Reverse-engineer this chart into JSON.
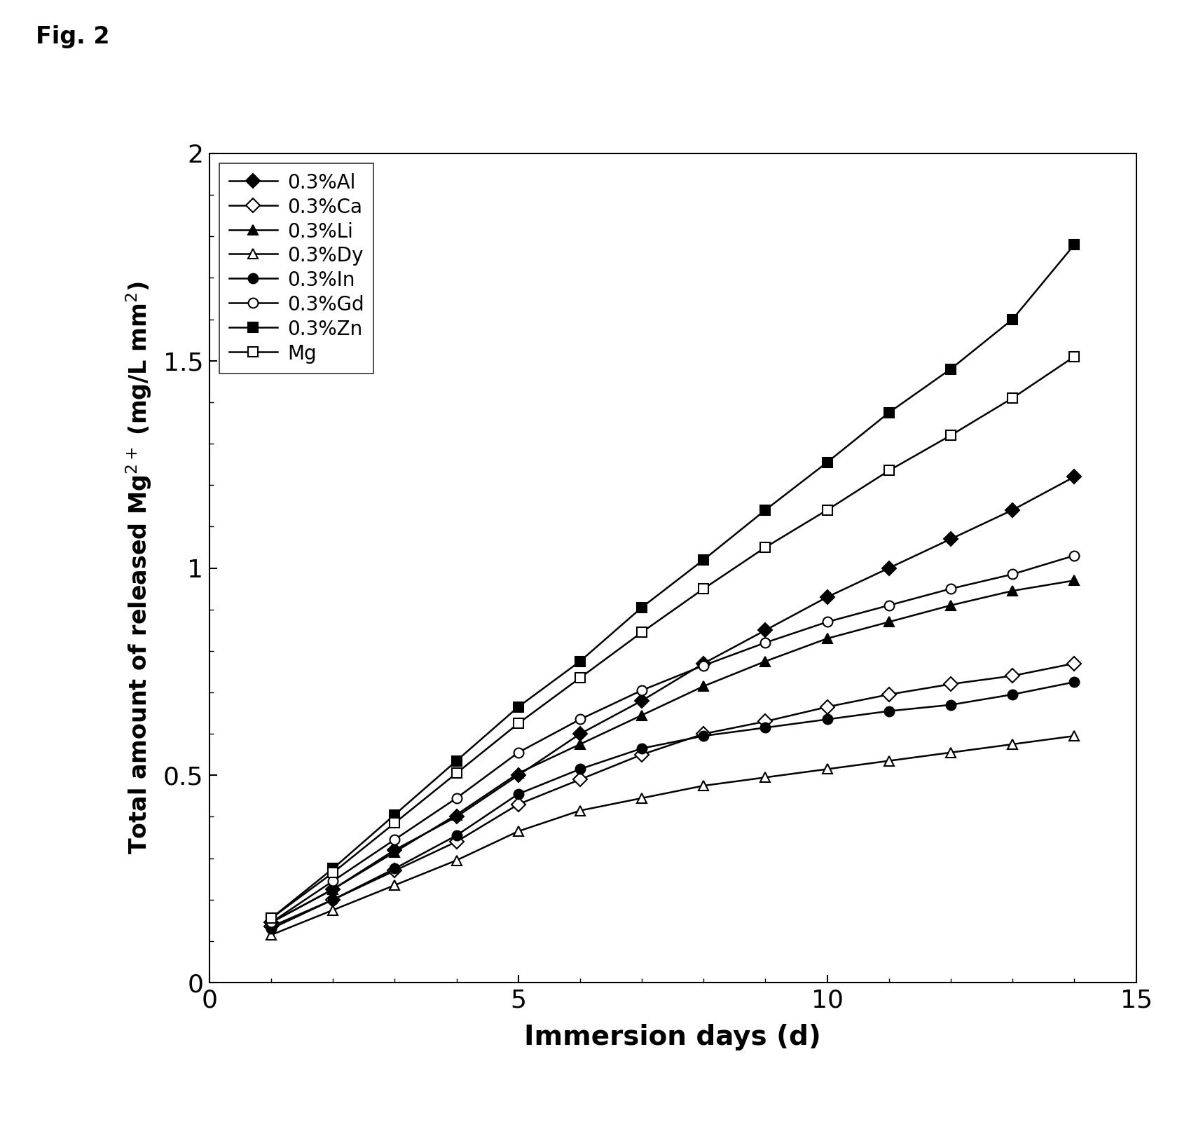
{
  "title": "Fig. 2",
  "xlabel": "Immersion days (d)",
  "ylabel": "Total amount of released Mg$^{2+}$ (mg/L mm$^{2}$)",
  "xlim": [
    0,
    15
  ],
  "ylim": [
    0,
    2.0
  ],
  "xticks": [
    0,
    5,
    10,
    15
  ],
  "yticks": [
    0,
    0.5,
    1.0,
    1.5,
    2.0
  ],
  "series": [
    {
      "label": "0.3%Al",
      "marker": "D",
      "fillstyle": "full",
      "x": [
        1,
        2,
        3,
        4,
        5,
        6,
        7,
        8,
        9,
        10,
        11,
        12,
        13,
        14
      ],
      "y": [
        0.145,
        0.225,
        0.32,
        0.4,
        0.5,
        0.6,
        0.68,
        0.77,
        0.85,
        0.93,
        1.0,
        1.07,
        1.14,
        1.22
      ]
    },
    {
      "label": "0.3%Ca",
      "marker": "D",
      "fillstyle": "none",
      "x": [
        1,
        2,
        3,
        4,
        5,
        6,
        7,
        8,
        9,
        10,
        11,
        12,
        13,
        14
      ],
      "y": [
        0.135,
        0.2,
        0.27,
        0.34,
        0.43,
        0.49,
        0.55,
        0.6,
        0.63,
        0.665,
        0.695,
        0.72,
        0.74,
        0.77
      ]
    },
    {
      "label": "0.3%Li",
      "marker": "^",
      "fillstyle": "full",
      "x": [
        1,
        2,
        3,
        4,
        5,
        6,
        7,
        8,
        9,
        10,
        11,
        12,
        13,
        14
      ],
      "y": [
        0.145,
        0.225,
        0.315,
        0.405,
        0.505,
        0.575,
        0.645,
        0.715,
        0.775,
        0.83,
        0.87,
        0.91,
        0.945,
        0.97
      ]
    },
    {
      "label": "0.3%Dy",
      "marker": "^",
      "fillstyle": "none",
      "x": [
        1,
        2,
        3,
        4,
        5,
        6,
        7,
        8,
        9,
        10,
        11,
        12,
        13,
        14
      ],
      "y": [
        0.115,
        0.175,
        0.235,
        0.295,
        0.365,
        0.415,
        0.445,
        0.475,
        0.495,
        0.515,
        0.535,
        0.555,
        0.575,
        0.595
      ]
    },
    {
      "label": "0.3%In",
      "marker": "o",
      "fillstyle": "full",
      "x": [
        1,
        2,
        3,
        4,
        5,
        6,
        7,
        8,
        9,
        10,
        11,
        12,
        13,
        14
      ],
      "y": [
        0.13,
        0.2,
        0.275,
        0.355,
        0.455,
        0.515,
        0.565,
        0.595,
        0.615,
        0.635,
        0.655,
        0.67,
        0.695,
        0.725
      ]
    },
    {
      "label": "0.3%Gd",
      "marker": "o",
      "fillstyle": "none",
      "x": [
        1,
        2,
        3,
        4,
        5,
        6,
        7,
        8,
        9,
        10,
        11,
        12,
        13,
        14
      ],
      "y": [
        0.145,
        0.245,
        0.345,
        0.445,
        0.555,
        0.635,
        0.705,
        0.765,
        0.82,
        0.87,
        0.91,
        0.95,
        0.985,
        1.03
      ]
    },
    {
      "label": "0.3%Zn",
      "marker": "s",
      "fillstyle": "full",
      "x": [
        1,
        2,
        3,
        4,
        5,
        6,
        7,
        8,
        9,
        10,
        11,
        12,
        13,
        14
      ],
      "y": [
        0.155,
        0.275,
        0.405,
        0.535,
        0.665,
        0.775,
        0.905,
        1.02,
        1.14,
        1.255,
        1.375,
        1.48,
        1.6,
        1.78
      ]
    },
    {
      "label": "Mg",
      "marker": "s",
      "fillstyle": "none",
      "x": [
        1,
        2,
        3,
        4,
        5,
        6,
        7,
        8,
        9,
        10,
        11,
        12,
        13,
        14
      ],
      "y": [
        0.155,
        0.265,
        0.385,
        0.505,
        0.625,
        0.735,
        0.845,
        0.95,
        1.05,
        1.14,
        1.235,
        1.32,
        1.41,
        1.51
      ]
    }
  ]
}
